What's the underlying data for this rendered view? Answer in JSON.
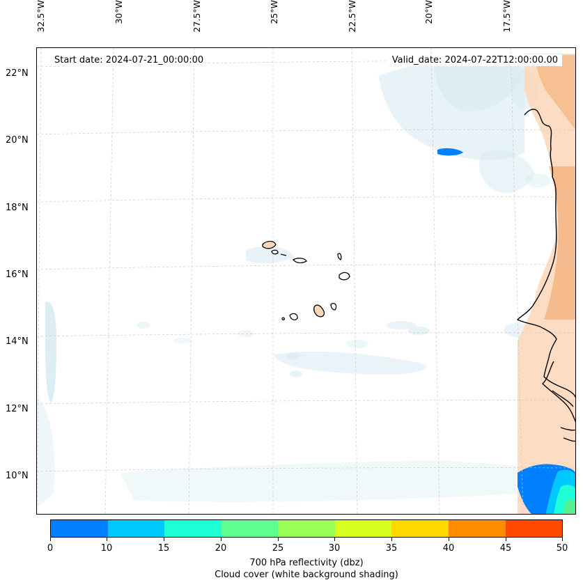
{
  "map": {
    "start_date": "Start date: 2024-07-21_00:00:00",
    "valid_date": "Valid_date: 2024-07-22T12:00:00.00",
    "lon_labels": [
      "32.5°W",
      "30°W",
      "27.5°W",
      "25°W",
      "22.5°W",
      "20°W",
      "17.5°W"
    ],
    "lat_labels": [
      "22°N",
      "20°N",
      "18°N",
      "16°N",
      "14°N",
      "12°N",
      "10°N"
    ],
    "region": "Cape Verde / West Africa coast",
    "colors": {
      "cloud_shading": "#d6eaf2",
      "land_warm": "#f4b07a",
      "reflectivity_core": "#55f08f",
      "coastline": "#000000",
      "grid": "#c8c8c8"
    }
  },
  "colorbar": {
    "title_line1": "700 hPa reflectivity (dbz)",
    "title_line2": "Cloud cover (white background shading)",
    "ticks": [
      "0",
      "10",
      "15",
      "20",
      "25",
      "30",
      "35",
      "40",
      "45",
      "50"
    ],
    "colors": [
      "#0080ff",
      "#00c8ff",
      "#1effd8",
      "#5cff90",
      "#9cff55",
      "#d8ff22",
      "#ffd900",
      "#ff8c00",
      "#ff4800"
    ]
  }
}
